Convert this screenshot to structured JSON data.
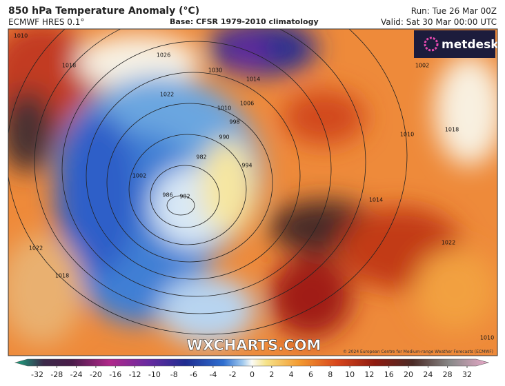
{
  "header": {
    "title": "850 hPa Temperature Anomaly (°C)",
    "model": "ECMWF HRES 0.1°",
    "base": "Base: CFSR 1979-2010 climatology",
    "run": "Run: Tue 26 Mar 00Z",
    "valid": "Valid: Sat 30 Mar 00:00 UTC"
  },
  "logo": "metdesk",
  "watermark": "WXCHARTS.COM",
  "copyright": "© 2024 European Centre for Medium-range Weather Forecasts (ECMWF)",
  "isobar_labels": [
    "1010",
    "1018",
    "1026",
    "1030",
    "1022",
    "1014",
    "1010",
    "1006",
    "998",
    "990",
    "982",
    "994",
    "1002",
    "986",
    "982",
    "1022",
    "1018",
    "1002",
    "1018",
    "1010",
    "1014",
    "1022",
    "1010"
  ],
  "colorbar": {
    "ticks": [
      -32,
      -28,
      -24,
      -20,
      -16,
      -12,
      -10,
      -8,
      -6,
      -4,
      -2,
      0,
      2,
      4,
      6,
      8,
      10,
      12,
      16,
      20,
      24,
      28,
      32
    ]
  }
}
